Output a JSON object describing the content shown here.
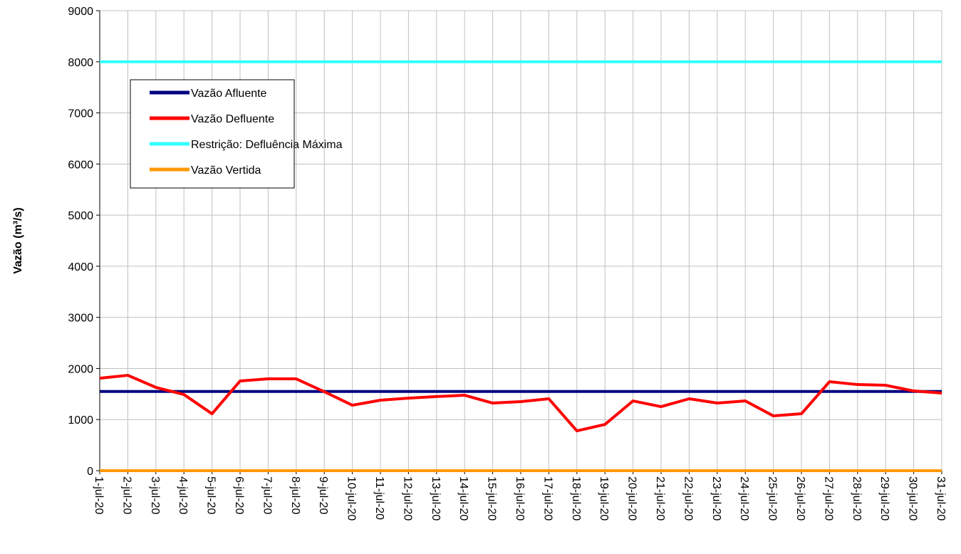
{
  "chart_data": {
    "type": "line",
    "y_label": "Vazão (m³/s)",
    "categories": [
      "1-jul-20",
      "2-jul-20",
      "3-jul-20",
      "4-jul-20",
      "5-jul-20",
      "6-jul-20",
      "7-jul-20",
      "8-jul-20",
      "9-jul-20",
      "10-jul-20",
      "11-jul-20",
      "12-jul-20",
      "13-jul-20",
      "14-jul-20",
      "15-jul-20",
      "16-jul-20",
      "17-jul-20",
      "18-jul-20",
      "19-jul-20",
      "20-jul-20",
      "21-jul-20",
      "22-jul-20",
      "23-jul-20",
      "24-jul-20",
      "25-jul-20",
      "26-jul-20",
      "27-jul-20",
      "28-jul-20",
      "29-jul-20",
      "30-jul-20",
      "31-jul-20"
    ],
    "series": [
      {
        "name": "Vazão Afluente",
        "color": "#000080",
        "values": [
          1550,
          1550,
          1550,
          1550,
          1550,
          1550,
          1550,
          1550,
          1550,
          1550,
          1550,
          1550,
          1550,
          1550,
          1550,
          1550,
          1550,
          1550,
          1550,
          1550,
          1550,
          1550,
          1550,
          1550,
          1550,
          1550,
          1550,
          1550,
          1550,
          1550,
          1550
        ]
      },
      {
        "name": "Vazão Defluente",
        "color": "#ff0000",
        "values": [
          1810,
          1866,
          1630,
          1490,
          1114,
          1755,
          1797,
          1797,
          1546,
          1281,
          1379,
          1420,
          1450,
          1476,
          1323,
          1351,
          1407,
          780,
          905,
          1365,
          1253,
          1407,
          1323,
          1365,
          1072,
          1114,
          1741,
          1685,
          1671,
          1560,
          1518
        ]
      },
      {
        "name": "Restrição: Defluência Máxima",
        "color": "#33ffff",
        "values": [
          8000,
          8000,
          8000,
          8000,
          8000,
          8000,
          8000,
          8000,
          8000,
          8000,
          8000,
          8000,
          8000,
          8000,
          8000,
          8000,
          8000,
          8000,
          8000,
          8000,
          8000,
          8000,
          8000,
          8000,
          8000,
          8000,
          8000,
          8000,
          8000,
          8000,
          8000
        ]
      },
      {
        "name": "Vazão Vertida",
        "color": "#ff9900",
        "values": [
          0,
          0,
          0,
          0,
          0,
          0,
          0,
          0,
          0,
          0,
          0,
          0,
          0,
          0,
          0,
          0,
          0,
          0,
          0,
          0,
          0,
          0,
          0,
          0,
          0,
          0,
          0,
          0,
          0,
          0,
          0
        ]
      }
    ],
    "ylim": [
      0,
      9000
    ],
    "yticks": [
      0,
      1000,
      2000,
      3000,
      4000,
      5000,
      6000,
      7000,
      8000,
      9000
    ],
    "grid": true
  }
}
